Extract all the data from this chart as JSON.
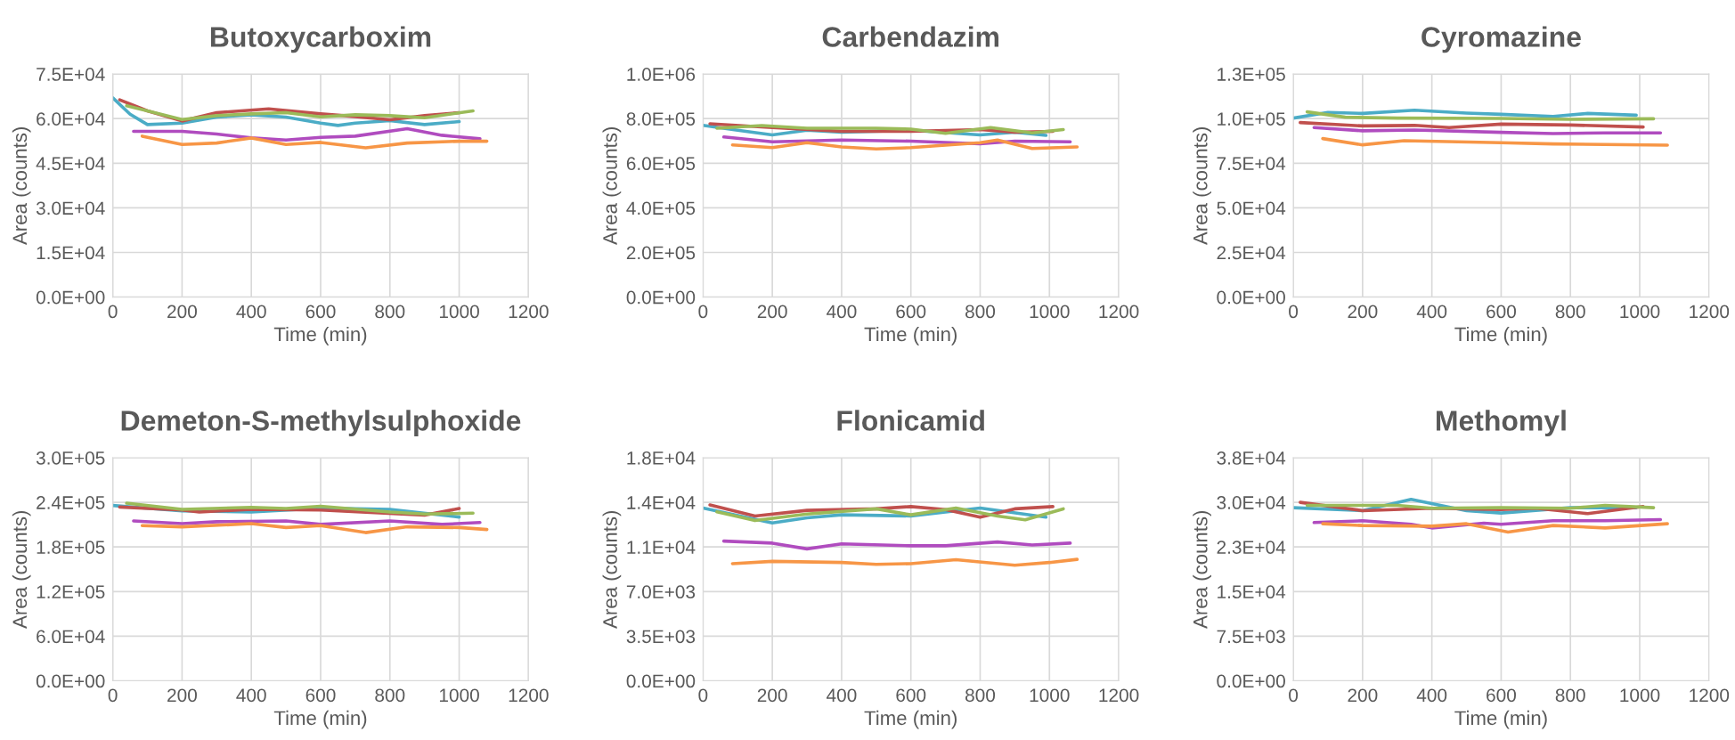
{
  "chart_data": [
    {
      "type": "line",
      "title": "Butoxycarboxim",
      "xlabel": "Time (min)",
      "ylabel": "Area (counts)",
      "xlim": [
        0,
        1200
      ],
      "xticks": [
        0,
        200,
        400,
        600,
        800,
        1000,
        1200
      ],
      "ylim": [
        0,
        75000
      ],
      "yticks": [
        {
          "value": 0,
          "label": "0.0E+00"
        },
        {
          "value": 15000,
          "label": "1.5E+04"
        },
        {
          "value": 30000,
          "label": "3.0E+04"
        },
        {
          "value": 45000,
          "label": "4.5E+04"
        },
        {
          "value": 60000,
          "label": "6.0E+04"
        },
        {
          "value": 75000,
          "label": "7.5E+04"
        }
      ],
      "grid": true,
      "marker": "none",
      "line_style": "solid",
      "series": [
        {
          "color": "#4bacc6",
          "x": [
            0,
            50,
            100,
            200,
            300,
            400,
            500,
            600,
            650,
            700,
            800,
            900,
            1000
          ],
          "values": [
            67000,
            61500,
            58000,
            58500,
            60500,
            61300,
            60500,
            58500,
            57700,
            58500,
            59300,
            58000,
            59000
          ]
        },
        {
          "color": "#c0504d",
          "x": [
            20,
            100,
            200,
            300,
            450,
            600,
            700,
            800,
            900,
            1000
          ],
          "values": [
            66300,
            62600,
            59200,
            62000,
            63300,
            61600,
            60700,
            59600,
            61000,
            62000
          ]
        },
        {
          "color": "#9bbb59",
          "x": [
            40,
            100,
            200,
            300,
            400,
            500,
            600,
            700,
            800,
            900,
            1040
          ],
          "values": [
            64300,
            62600,
            59700,
            61000,
            61600,
            62000,
            60600,
            61300,
            61000,
            60300,
            62600
          ]
        },
        {
          "color": "#b04cbf",
          "x": [
            60,
            200,
            300,
            400,
            500,
            600,
            700,
            850,
            950,
            1060
          ],
          "values": [
            55700,
            55700,
            54800,
            53500,
            52800,
            53700,
            54100,
            56600,
            54400,
            53200
          ]
        },
        {
          "color": "#f79646",
          "x": [
            85,
            200,
            300,
            400,
            500,
            600,
            730,
            850,
            1000,
            1080
          ],
          "values": [
            54100,
            51300,
            51800,
            53500,
            51300,
            52000,
            50200,
            51800,
            52400,
            52400
          ]
        }
      ]
    },
    {
      "type": "line",
      "title": "Carbendazim",
      "xlabel": "Time (min)",
      "ylabel": "Area (counts)",
      "xlim": [
        0,
        1200
      ],
      "xticks": [
        0,
        200,
        400,
        600,
        800,
        1000,
        1200
      ],
      "ylim": [
        0,
        1000000
      ],
      "yticks": [
        {
          "value": 0,
          "label": "0.0E+00"
        },
        {
          "value": 200000,
          "label": "2.0E+05"
        },
        {
          "value": 400000,
          "label": "4.0E+05"
        },
        {
          "value": 600000,
          "label": "6.0E+05"
        },
        {
          "value": 800000,
          "label": "8.0E+05"
        },
        {
          "value": 1000000,
          "label": "1.0E+06"
        }
      ],
      "grid": true,
      "marker": "none",
      "line_style": "solid",
      "series": [
        {
          "color": "#4bacc6",
          "x": [
            0,
            100,
            200,
            300,
            400,
            600,
            800,
            900,
            990
          ],
          "values": [
            770000,
            748000,
            727000,
            748000,
            739000,
            748000,
            727000,
            739000,
            725000
          ]
        },
        {
          "color": "#c0504d",
          "x": [
            20,
            200,
            400,
            600,
            800,
            900,
            1010
          ],
          "values": [
            777000,
            760000,
            743000,
            743000,
            751000,
            739000,
            743000
          ]
        },
        {
          "color": "#9bbb59",
          "x": [
            40,
            170,
            300,
            500,
            600,
            700,
            830,
            950,
            1040
          ],
          "values": [
            757000,
            769000,
            757000,
            757000,
            753000,
            734000,
            760000,
            736000,
            751000
          ]
        },
        {
          "color": "#b04cbf",
          "x": [
            60,
            200,
            400,
            600,
            800,
            900,
            1060
          ],
          "values": [
            718000,
            696000,
            704000,
            699000,
            687000,
            699000,
            696000
          ]
        },
        {
          "color": "#f79646",
          "x": [
            85,
            200,
            300,
            400,
            500,
            600,
            800,
            850,
            950,
            1080
          ],
          "values": [
            682000,
            670000,
            692000,
            673000,
            664000,
            670000,
            692000,
            704000,
            666000,
            673000
          ]
        }
      ]
    },
    {
      "type": "line",
      "title": "Cyromazine",
      "xlabel": "Time (min)",
      "ylabel": "Area (counts)",
      "xlim": [
        0,
        1200
      ],
      "xticks": [
        0,
        200,
        400,
        600,
        800,
        1000,
        1200
      ],
      "ylim": [
        0,
        125000
      ],
      "yticks": [
        {
          "value": 0,
          "label": "0.0E+00"
        },
        {
          "value": 25000,
          "label": "2.5E+04"
        },
        {
          "value": 50000,
          "label": "5.0E+04"
        },
        {
          "value": 75000,
          "label": "7.5E+04"
        },
        {
          "value": 100000,
          "label": "1.0E+05"
        },
        {
          "value": 125000,
          "label": "1.3E+05"
        }
      ],
      "grid": true,
      "marker": "none",
      "line_style": "solid",
      "series": [
        {
          "color": "#4bacc6",
          "x": [
            0,
            100,
            200,
            350,
            500,
            600,
            750,
            850,
            990
          ],
          "values": [
            100300,
            103500,
            102900,
            104700,
            103100,
            102400,
            101200,
            102900,
            101900
          ]
        },
        {
          "color": "#9bbb59",
          "x": [
            40,
            150,
            300,
            600,
            800,
            1040
          ],
          "values": [
            103800,
            100800,
            100300,
            100100,
            99600,
            99900
          ]
        },
        {
          "color": "#c0504d",
          "x": [
            20,
            200,
            350,
            450,
            600,
            800,
            1010
          ],
          "values": [
            97800,
            95900,
            96200,
            95000,
            96900,
            96400,
            95300
          ]
        },
        {
          "color": "#b04cbf",
          "x": [
            60,
            200,
            350,
            600,
            750,
            900,
            1060
          ],
          "values": [
            95000,
            93200,
            93600,
            92300,
            91600,
            92000,
            92000
          ]
        },
        {
          "color": "#f79646",
          "x": [
            85,
            200,
            320,
            600,
            750,
            1080
          ],
          "values": [
            88800,
            85300,
            87600,
            86500,
            85800,
            85100
          ]
        }
      ]
    },
    {
      "type": "line",
      "title": "Demeton-S-methylsulphoxide",
      "xlabel": "Time (min)",
      "ylabel": "Area (counts)",
      "xlim": [
        0,
        1200
      ],
      "xticks": [
        0,
        200,
        400,
        600,
        800,
        1000,
        1200
      ],
      "ylim": [
        0,
        300000
      ],
      "yticks": [
        {
          "value": 0,
          "label": "0.0E+00"
        },
        {
          "value": 60000,
          "label": "6.0E+04"
        },
        {
          "value": 120000,
          "label": "1.2E+05"
        },
        {
          "value": 180000,
          "label": "1.8E+05"
        },
        {
          "value": 240000,
          "label": "2.4E+05"
        },
        {
          "value": 300000,
          "label": "3.0E+05"
        }
      ],
      "grid": true,
      "marker": "none",
      "line_style": "solid",
      "series": [
        {
          "color": "#4bacc6",
          "x": [
            0,
            200,
            400,
            600,
            800,
            1000
          ],
          "values": [
            235800,
            228500,
            227000,
            232200,
            230600,
            220200
          ]
        },
        {
          "color": "#c0504d",
          "x": [
            20,
            200,
            250,
            400,
            600,
            900,
            1000
          ],
          "values": [
            233700,
            229600,
            227000,
            230600,
            229600,
            222800,
            231700
          ]
        },
        {
          "color": "#9bbb59",
          "x": [
            40,
            200,
            400,
            500,
            600,
            800,
            900,
            1040
          ],
          "values": [
            238900,
            230600,
            233200,
            231700,
            234800,
            227000,
            224300,
            225400
          ]
        },
        {
          "color": "#b04cbf",
          "x": [
            60,
            200,
            300,
            500,
            600,
            800,
            950,
            1060
          ],
          "values": [
            215000,
            211300,
            213900,
            215000,
            210300,
            215000,
            210300,
            212900
          ]
        },
        {
          "color": "#f79646",
          "x": [
            85,
            200,
            400,
            500,
            600,
            730,
            850,
            1000,
            1080
          ],
          "values": [
            208700,
            207100,
            211300,
            206100,
            208700,
            199300,
            207100,
            206100,
            203500
          ]
        }
      ]
    },
    {
      "type": "line",
      "title": "Flonicamid",
      "xlabel": "Time (min)",
      "ylabel": "Area (counts)",
      "xlim": [
        0,
        1200
      ],
      "xticks": [
        0,
        200,
        400,
        600,
        800,
        1000,
        1200
      ],
      "ylim": [
        0,
        17500
      ],
      "yticks": [
        {
          "value": 0,
          "label": "0.0E+00"
        },
        {
          "value": 3500,
          "label": "3.5E+03"
        },
        {
          "value": 7000,
          "label": "7.0E+03"
        },
        {
          "value": 10500,
          "label": "1.1E+04"
        },
        {
          "value": 14000,
          "label": "1.4E+04"
        },
        {
          "value": 17500,
          "label": "1.8E+04"
        }
      ],
      "grid": true,
      "marker": "none",
      "line_style": "solid",
      "series": [
        {
          "color": "#4bacc6",
          "x": [
            0,
            200,
            300,
            400,
            600,
            800,
            990
          ],
          "values": [
            13550,
            12380,
            12780,
            13020,
            12930,
            13550,
            12840
          ]
        },
        {
          "color": "#c0504d",
          "x": [
            20,
            150,
            300,
            500,
            600,
            700,
            800,
            900,
            1010
          ],
          "values": [
            13800,
            12920,
            13370,
            13490,
            13670,
            13430,
            12830,
            13490,
            13670
          ]
        },
        {
          "color": "#9bbb59",
          "x": [
            40,
            150,
            300,
            500,
            600,
            730,
            850,
            930,
            1040
          ],
          "values": [
            13250,
            12570,
            13080,
            13490,
            13020,
            13550,
            12930,
            12630,
            13490
          ]
        },
        {
          "color": "#b04cbf",
          "x": [
            60,
            200,
            300,
            400,
            600,
            700,
            850,
            950,
            1060
          ],
          "values": [
            10960,
            10800,
            10350,
            10740,
            10590,
            10590,
            10890,
            10650,
            10800
          ]
        },
        {
          "color": "#f79646",
          "x": [
            85,
            200,
            400,
            500,
            600,
            730,
            900,
            1000,
            1080
          ],
          "values": [
            9190,
            9370,
            9280,
            9130,
            9190,
            9500,
            9070,
            9280,
            9530
          ]
        }
      ]
    },
    {
      "type": "line",
      "title": "Methomyl",
      "xlabel": "Time (min)",
      "ylabel": "Area (counts)",
      "xlim": [
        0,
        1200
      ],
      "xticks": [
        0,
        200,
        400,
        600,
        800,
        1000,
        1200
      ],
      "ylim": [
        0,
        37500
      ],
      "yticks": [
        {
          "value": 0,
          "label": "0.0E+00"
        },
        {
          "value": 7500,
          "label": "7.5E+03"
        },
        {
          "value": 15000,
          "label": "1.5E+04"
        },
        {
          "value": 22500,
          "label": "2.3E+04"
        },
        {
          "value": 30000,
          "label": "3.0E+04"
        },
        {
          "value": 37500,
          "label": "3.8E+04"
        }
      ],
      "grid": true,
      "marker": "none",
      "line_style": "solid",
      "series": [
        {
          "color": "#4bacc6",
          "x": [
            0,
            200,
            340,
            500,
            600,
            800,
            990
          ],
          "values": [
            29100,
            28600,
            30500,
            28600,
            28200,
            29100,
            29100
          ]
        },
        {
          "color": "#c0504d",
          "x": [
            20,
            200,
            400,
            600,
            700,
            850,
            1010
          ],
          "values": [
            30000,
            28600,
            29000,
            28800,
            29000,
            28100,
            29300
          ]
        },
        {
          "color": "#9bbb59",
          "x": [
            40,
            200,
            300,
            400,
            600,
            800,
            900,
            1040
          ],
          "values": [
            29500,
            29500,
            29500,
            29000,
            29100,
            29000,
            29500,
            29100
          ]
        },
        {
          "color": "#b04cbf",
          "x": [
            60,
            200,
            340,
            400,
            550,
            600,
            750,
            900,
            1060
          ],
          "values": [
            26600,
            26900,
            26300,
            25700,
            26500,
            26300,
            26900,
            26900,
            27100
          ]
        },
        {
          "color": "#f79646",
          "x": [
            85,
            200,
            400,
            500,
            620,
            750,
            900,
            1080
          ],
          "values": [
            26400,
            26100,
            26000,
            26400,
            25000,
            26100,
            25700,
            26400
          ]
        }
      ]
    }
  ]
}
